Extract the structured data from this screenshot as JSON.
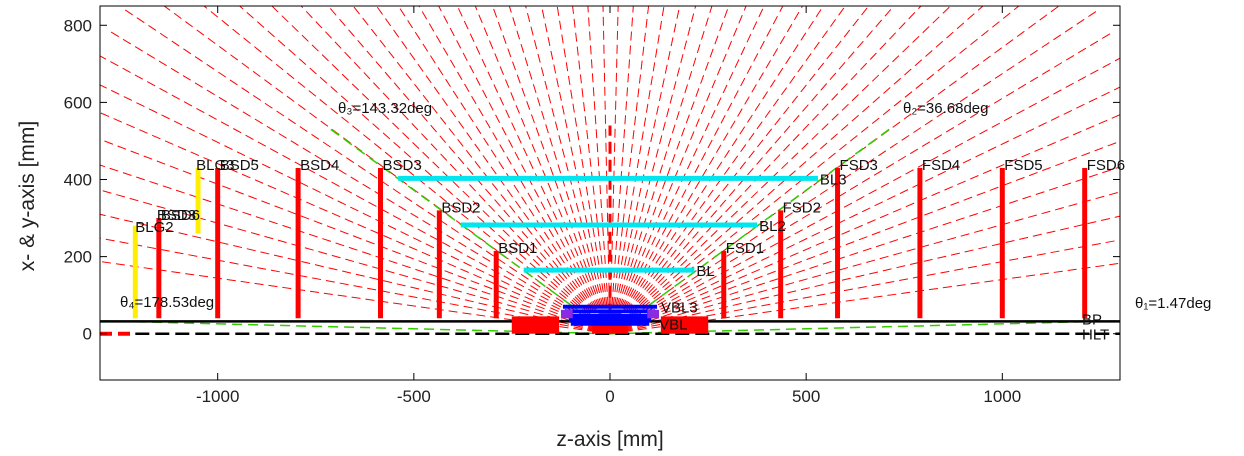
{
  "chart_data": {
    "type": "line",
    "title": "",
    "xlabel": "z-axis [mm]",
    "ylabel": "x- & y-axis [mm]",
    "xlim": [
      -1300,
      1300
    ],
    "ylim": [
      -120,
      850
    ],
    "xticks": [
      -1000,
      -500,
      0,
      500,
      1000
    ],
    "yticks": [
      0,
      200,
      400,
      600,
      800
    ],
    "grid": false,
    "colors": {
      "disk": "#ff0000",
      "barrel": "#00e5ee",
      "vertex": "#0000ff",
      "pixel": "#8a2be2",
      "green": "#33cc00",
      "yellow": "#ffee00",
      "black": "#000000",
      "rays": "#ff0000"
    },
    "disks": [
      {
        "name": "FSD1",
        "z": 290,
        "rmin": 40,
        "rmax": 215,
        "color": "#ff0000"
      },
      {
        "name": "FSD2",
        "z": 435,
        "rmin": 40,
        "rmax": 320,
        "color": "#ff0000"
      },
      {
        "name": "FSD3",
        "z": 580,
        "rmin": 40,
        "rmax": 430,
        "color": "#ff0000"
      },
      {
        "name": "FSD4",
        "z": 790,
        "rmin": 40,
        "rmax": 430,
        "color": "#ff0000"
      },
      {
        "name": "FSD5",
        "z": 1000,
        "rmin": 40,
        "rmax": 430,
        "color": "#ff0000"
      },
      {
        "name": "FSD6",
        "z": 1210,
        "rmin": 40,
        "rmax": 430,
        "color": "#ff0000"
      },
      {
        "name": "BSD1",
        "z": -290,
        "rmin": 40,
        "rmax": 215,
        "color": "#ff0000"
      },
      {
        "name": "BSD2",
        "z": -435,
        "rmin": 40,
        "rmax": 320,
        "color": "#ff0000"
      },
      {
        "name": "BSD3",
        "z": -585,
        "rmin": 40,
        "rmax": 430,
        "color": "#ff0000"
      },
      {
        "name": "BSD4",
        "z": -795,
        "rmin": 40,
        "rmax": 430,
        "color": "#ff0000"
      },
      {
        "name": "BSD5",
        "z": -1000,
        "rmin": 40,
        "rmax": 430,
        "color": "#ff0000"
      },
      {
        "name": "BSD6",
        "z": -1150,
        "rmin": 40,
        "rmax": 300,
        "color": "#ff0000"
      },
      {
        "name": "",
        "z": -1050,
        "rmin": 260,
        "rmax": 430,
        "color": "#ffee00"
      },
      {
        "name": "",
        "z": -1210,
        "rmin": 40,
        "rmax": 280,
        "color": "#ffee00"
      }
    ],
    "barrels": [
      {
        "name": "BL",
        "zmin": -220,
        "zmax": 215,
        "r": 165,
        "color": "#00e5ee"
      },
      {
        "name": "BL2",
        "zmin": -380,
        "zmax": 375,
        "r": 282,
        "color": "#00e5ee"
      },
      {
        "name": "BL3",
        "zmin": -540,
        "zmax": 530,
        "r": 403,
        "color": "#00e5ee"
      },
      {
        "name": "VBL3",
        "zmin": -120,
        "zmax": 120,
        "r": 70,
        "color": "#0000ff"
      },
      {
        "name": "",
        "zmin": -115,
        "zmax": 115,
        "r": 58,
        "color": "#0000ff"
      },
      {
        "name": "",
        "zmin": -110,
        "zmax": 110,
        "r": 46,
        "color": "#0000ff"
      },
      {
        "name": "",
        "zmin": -105,
        "zmax": 105,
        "r": 36,
        "color": "#0000ff"
      },
      {
        "name": "VBL",
        "zmin": -100,
        "zmax": 100,
        "r": 26,
        "color": "#0000ff"
      }
    ],
    "lines": [
      {
        "name": "BP",
        "zmin": -1300,
        "zmax": 1300,
        "r": 32,
        "color": "#000000"
      },
      {
        "name": "HLT",
        "zmin": -1210,
        "zmax": 1300,
        "r": 0,
        "color": "#000000"
      }
    ],
    "angles": [
      {
        "label": "θ₁=1.47deg",
        "deg": 1.47
      },
      {
        "label": "θ₂=36.68deg",
        "deg": 36.68
      },
      {
        "label": "θ₃=143.32deg",
        "deg": 143.32
      },
      {
        "label": "θ₄=178.53deg",
        "deg": 178.53
      }
    ],
    "annotations": [
      "VBL3",
      "VBL",
      "BL",
      "BL2",
      "BL3",
      "BP",
      "HLT",
      "BLG2",
      "BLG3",
      "BSD3"
    ]
  }
}
